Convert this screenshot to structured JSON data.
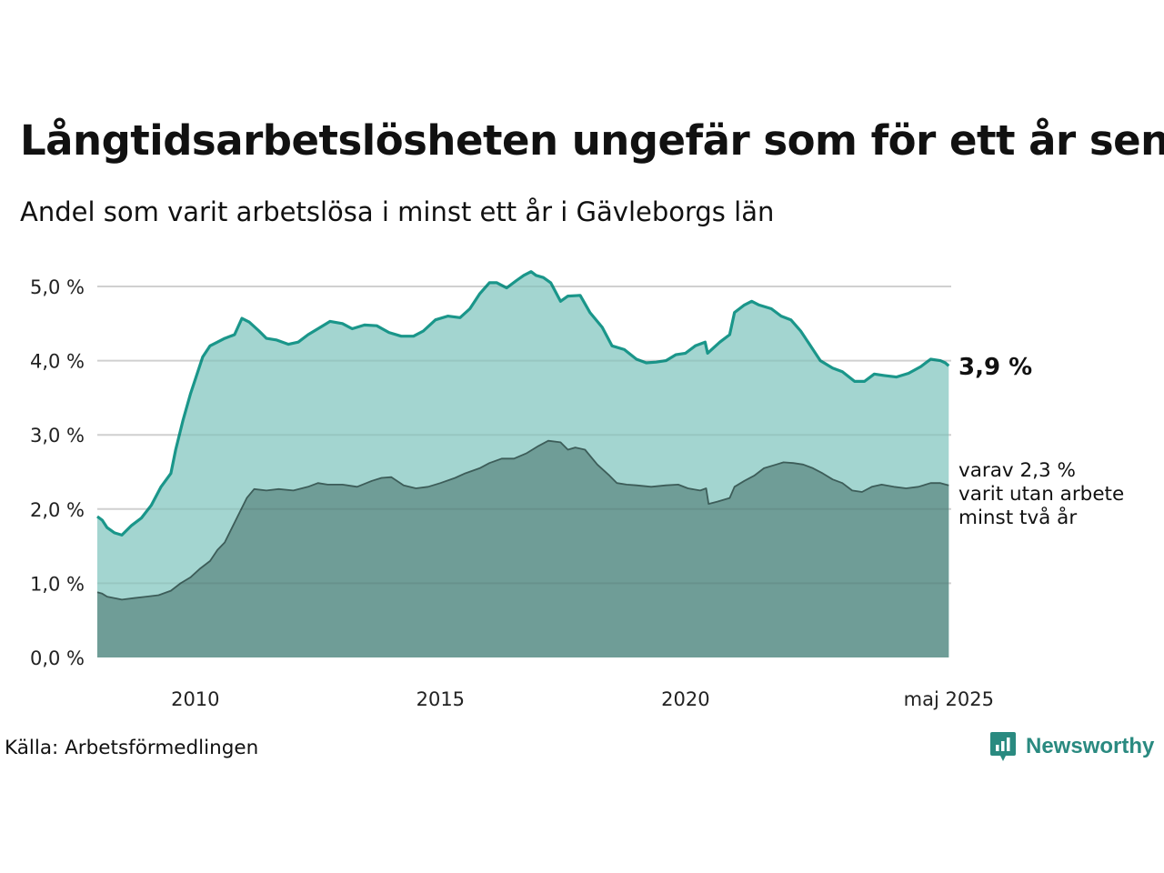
{
  "title": "Långtidsarbetslösheten ungefär som för ett år sen",
  "subtitle": "Andel som varit arbetslösa i minst ett år i Gävleborgs län",
  "source": "Källa: Arbetsförmedlingen",
  "logo": {
    "text": "Newsworthy",
    "icon": "chart-logo-icon"
  },
  "colors": {
    "total_fill": "#a3d5d0",
    "total_line": "#1a968a",
    "longterm_fill": "#6f9d97",
    "longterm_line": "#3d5d59",
    "grid": "#e0e0e0"
  },
  "chart_data": {
    "type": "area",
    "ylim": [
      0,
      5.2
    ],
    "xlim": [
      2008.0,
      2025.42
    ],
    "grid": true,
    "y_ticks": [
      {
        "value": 0,
        "label": "0,0 %"
      },
      {
        "value": 1,
        "label": "1,0 %"
      },
      {
        "value": 2,
        "label": "2,0 %"
      },
      {
        "value": 3,
        "label": "3,0 %"
      },
      {
        "value": 4,
        "label": "4,0 %"
      },
      {
        "value": 5,
        "label": "5,0 %"
      }
    ],
    "x_ticks": [
      {
        "value": 2010,
        "label": "2010"
      },
      {
        "value": 2015,
        "label": "2015"
      },
      {
        "value": 2020,
        "label": "2020"
      },
      {
        "value": 2025.37,
        "label": "maj 2025"
      }
    ],
    "end_labels": {
      "total": "3,9 %",
      "longterm": [
        "varav 2,3 %",
        "varit utan arbete",
        "minst två år"
      ]
    },
    "series": [
      {
        "key": "total",
        "x": [
          2008.0,
          2008.1,
          2008.2,
          2008.35,
          2008.5,
          2008.7,
          2008.9,
          2009.1,
          2009.3,
          2009.5,
          2009.6,
          2009.75,
          2009.9,
          2010.0,
          2010.15,
          2010.3,
          2010.45,
          2010.6,
          2010.8,
          2010.95,
          2011.1,
          2011.3,
          2011.45,
          2011.65,
          2011.9,
          2012.1,
          2012.3,
          2012.55,
          2012.75,
          2013.0,
          2013.2,
          2013.45,
          2013.7,
          2013.95,
          2014.2,
          2014.45,
          2014.65,
          2014.9,
          2015.15,
          2015.4,
          2015.6,
          2015.8,
          2016.0,
          2016.15,
          2016.35,
          2016.55,
          2016.7,
          2016.85,
          2016.95,
          2017.1,
          2017.25,
          2017.45,
          2017.6,
          2017.85,
          2018.05,
          2018.3,
          2018.5,
          2018.75,
          2019.0,
          2019.2,
          2019.4,
          2019.6,
          2019.8,
          2020.0,
          2020.2,
          2020.4,
          2020.45,
          2020.7,
          2020.9,
          2021.0,
          2021.2,
          2021.35,
          2021.5,
          2021.75,
          2021.95,
          2022.15,
          2022.35,
          2022.55,
          2022.75,
          2023.0,
          2023.2,
          2023.45,
          2023.65,
          2023.85,
          2024.05,
          2024.3,
          2024.55,
          2024.8,
          2025.0,
          2025.2,
          2025.3,
          2025.37
        ],
        "values": [
          1.9,
          1.85,
          1.75,
          1.68,
          1.65,
          1.78,
          1.88,
          2.05,
          2.3,
          2.48,
          2.8,
          3.2,
          3.55,
          3.75,
          4.05,
          4.2,
          4.25,
          4.3,
          4.35,
          4.57,
          4.52,
          4.4,
          4.3,
          4.28,
          4.22,
          4.25,
          4.35,
          4.45,
          4.53,
          4.5,
          4.43,
          4.48,
          4.47,
          4.38,
          4.33,
          4.33,
          4.4,
          4.55,
          4.6,
          4.58,
          4.7,
          4.9,
          5.05,
          5.05,
          4.98,
          5.08,
          5.15,
          5.2,
          5.15,
          5.12,
          5.05,
          4.8,
          4.87,
          4.88,
          4.65,
          4.45,
          4.2,
          4.15,
          4.02,
          3.97,
          3.98,
          4.0,
          4.08,
          4.1,
          4.2,
          4.25,
          4.1,
          4.25,
          4.35,
          4.65,
          4.75,
          4.8,
          4.75,
          4.7,
          4.6,
          4.55,
          4.4,
          4.2,
          4.0,
          3.9,
          3.85,
          3.72,
          3.72,
          3.82,
          3.8,
          3.78,
          3.83,
          3.92,
          4.02,
          4.0,
          3.97,
          3.93
        ]
      },
      {
        "key": "longterm",
        "x": [
          2008.0,
          2008.1,
          2008.2,
          2008.35,
          2008.5,
          2008.75,
          2009.0,
          2009.25,
          2009.5,
          2009.7,
          2009.9,
          2010.1,
          2010.3,
          2010.45,
          2010.6,
          2010.75,
          2010.9,
          2011.05,
          2011.2,
          2011.45,
          2011.7,
          2012.0,
          2012.3,
          2012.5,
          2012.7,
          2013.0,
          2013.3,
          2013.6,
          2013.8,
          2014.0,
          2014.25,
          2014.5,
          2014.75,
          2015.0,
          2015.3,
          2015.5,
          2015.8,
          2016.0,
          2016.25,
          2016.5,
          2016.75,
          2017.0,
          2017.2,
          2017.45,
          2017.6,
          2017.75,
          2017.95,
          2018.2,
          2018.45,
          2018.6,
          2018.8,
          2019.0,
          2019.3,
          2019.6,
          2019.85,
          2020.05,
          2020.3,
          2020.42,
          2020.47,
          2020.65,
          2020.9,
          2021.0,
          2021.2,
          2021.4,
          2021.6,
          2021.85,
          2022.0,
          2022.2,
          2022.4,
          2022.6,
          2022.8,
          2023.0,
          2023.2,
          2023.4,
          2023.6,
          2023.8,
          2024.0,
          2024.25,
          2024.5,
          2024.75,
          2025.0,
          2025.2,
          2025.37
        ],
        "values": [
          0.88,
          0.86,
          0.82,
          0.8,
          0.78,
          0.8,
          0.82,
          0.84,
          0.9,
          1.0,
          1.08,
          1.2,
          1.3,
          1.45,
          1.55,
          1.75,
          1.95,
          2.15,
          2.27,
          2.25,
          2.27,
          2.25,
          2.3,
          2.35,
          2.33,
          2.33,
          2.3,
          2.38,
          2.42,
          2.43,
          2.32,
          2.28,
          2.3,
          2.35,
          2.42,
          2.48,
          2.55,
          2.62,
          2.68,
          2.68,
          2.75,
          2.85,
          2.92,
          2.9,
          2.8,
          2.83,
          2.8,
          2.6,
          2.45,
          2.35,
          2.33,
          2.32,
          2.3,
          2.32,
          2.33,
          2.28,
          2.25,
          2.28,
          2.07,
          2.1,
          2.15,
          2.3,
          2.38,
          2.45,
          2.55,
          2.6,
          2.63,
          2.62,
          2.6,
          2.55,
          2.48,
          2.4,
          2.35,
          2.25,
          2.23,
          2.3,
          2.33,
          2.3,
          2.28,
          2.3,
          2.35,
          2.35,
          2.32
        ]
      }
    ]
  }
}
